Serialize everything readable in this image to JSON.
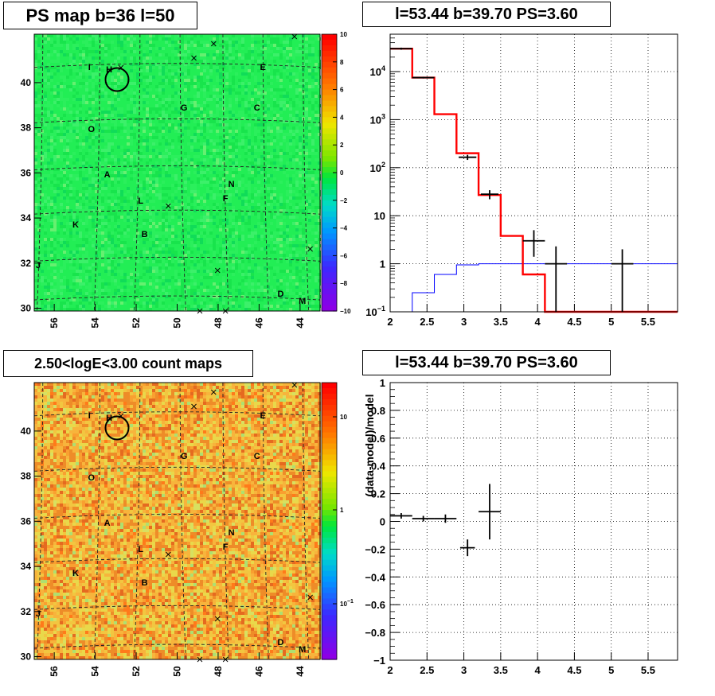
{
  "panels": {
    "ps_map_title": "PS map b=36 l=50",
    "spectrum_title": "l=53.44 b=39.70 PS=3.60",
    "count_map_title": "2.50<logE<3.00 count maps",
    "residual_title": "l=53.44 b=39.70 PS=3.60"
  },
  "colors": {
    "ps_map_fill": "#22ee55",
    "count_map_fill": "#f0a030",
    "data_series": "#000000",
    "model_series": "#ff0000",
    "background_series": "#0000ff"
  },
  "sky_maps": {
    "x_ticks": [
      "56",
      "54",
      "52",
      "50",
      "48",
      "46",
      "44"
    ],
    "y_ticks": [
      "30",
      "32",
      "34",
      "36",
      "38",
      "40"
    ],
    "sources": [
      {
        "label": "A",
        "x": 54.0,
        "y": 35.5
      },
      {
        "label": "B",
        "x": 52.1,
        "y": 33.0
      },
      {
        "label": "C",
        "x": 46.4,
        "y": 38.3
      },
      {
        "label": "D",
        "x": 45.2,
        "y": 30.5
      },
      {
        "label": "E",
        "x": 46.1,
        "y": 40.0
      },
      {
        "label": "F",
        "x": 48.0,
        "y": 34.5
      },
      {
        "label": "G",
        "x": 50.1,
        "y": 38.3
      },
      {
        "label": "H",
        "x": 53.9,
        "y": 39.9
      },
      {
        "label": "I",
        "x": 54.9,
        "y": 40.0
      },
      {
        "label": "J",
        "x": 57.5,
        "y": 31.7
      },
      {
        "label": "K",
        "x": 55.6,
        "y": 33.4
      },
      {
        "label": "L",
        "x": 52.3,
        "y": 34.4
      },
      {
        "label": "M",
        "x": 44.1,
        "y": 30.2
      },
      {
        "label": "N",
        "x": 47.7,
        "y": 35.1
      },
      {
        "label": "O",
        "x": 54.8,
        "y": 37.4
      }
    ],
    "circle": {
      "x": 53.5,
      "y": 39.6
    }
  },
  "chart_data": [
    {
      "type": "heatmap",
      "title": "PS map b=36 l=50",
      "x_ticks": [
        56,
        54,
        52,
        50,
        48,
        46,
        44
      ],
      "y_ticks": [
        30,
        32,
        34,
        36,
        38,
        40
      ],
      "colorbar_ticks": [
        "10",
        "8",
        "6",
        "4",
        "2",
        "0",
        "−2",
        "−4",
        "−6",
        "−8",
        "−10"
      ],
      "colorbar_range": [
        -10,
        10
      ]
    },
    {
      "type": "line",
      "title": "l=53.44 b=39.70 PS=3.60",
      "xlim": [
        2,
        5.9
      ],
      "ylim": [
        0.1,
        60000
      ],
      "y_log": true,
      "x_ticks": [
        "2",
        "2.5",
        "3",
        "3.5",
        "4",
        "4.5",
        "5",
        "5.5"
      ],
      "y_ticks": [
        {
          "v": 0.1,
          "label": "10",
          "sup": "−1"
        },
        {
          "v": 1,
          "label": "1",
          "sup": ""
        },
        {
          "v": 10,
          "label": "10",
          "sup": ""
        },
        {
          "v": 100,
          "label": "10",
          "sup": "2"
        },
        {
          "v": 1000,
          "label": "10",
          "sup": "3"
        },
        {
          "v": 10000,
          "label": "10",
          "sup": "4"
        }
      ],
      "bin_edges": [
        2,
        2.3,
        2.6,
        2.9,
        3.2,
        3.5,
        3.8,
        4.1,
        4.4,
        4.7,
        5.0,
        5.3,
        5.6,
        5.9
      ],
      "model_red": [
        30000,
        7500,
        1300,
        200,
        27,
        3.8,
        0.6,
        0.1,
        0.05,
        0.05,
        0.05,
        0.05,
        0.05
      ],
      "background_blue": [
        0.1,
        0.25,
        0.6,
        0.95,
        1.0,
        1.0,
        1.0,
        1.0,
        1.0,
        1.0,
        1.0,
        1.0,
        1.0
      ],
      "data_points": [
        {
          "x": 2.15,
          "y": 30000,
          "xerr": 0.15,
          "ylo": 28500,
          "yhi": 31500
        },
        {
          "x": 2.45,
          "y": 7500,
          "xerr": 0.15,
          "ylo": 7200,
          "yhi": 7800
        },
        {
          "x": 3.05,
          "y": 165,
          "xerr": 0.12,
          "ylo": 145,
          "yhi": 185
        },
        {
          "x": 3.35,
          "y": 28,
          "xerr": 0.12,
          "ylo": 22,
          "yhi": 34
        },
        {
          "x": 3.95,
          "y": 3.0,
          "xerr": 0.15,
          "ylo": 1.4,
          "yhi": 5.0
        },
        {
          "x": 4.25,
          "y": 1.0,
          "xerr": 0.15,
          "ylo": 0.1,
          "yhi": 2.3
        },
        {
          "x": 5.15,
          "y": 1.0,
          "xerr": 0.15,
          "ylo": 0.1,
          "yhi": 2.0
        }
      ]
    },
    {
      "type": "heatmap",
      "title": "2.50<logE<3.00 count maps",
      "x_ticks": [
        56,
        54,
        52,
        50,
        48,
        46,
        44
      ],
      "y_ticks": [
        30,
        32,
        34,
        36,
        38,
        40
      ],
      "colorbar_ticks": [
        {
          "v": 10,
          "label": "10",
          "sup": ""
        },
        {
          "v": 1,
          "label": "1",
          "sup": ""
        },
        {
          "v": 0.1,
          "label": "10",
          "sup": "−1"
        }
      ]
    },
    {
      "type": "scatter",
      "title": "l=53.44 b=39.70 PS=3.60",
      "ylabel": "(data-model)/model",
      "xlim": [
        2,
        5.9
      ],
      "ylim": [
        -1,
        1
      ],
      "x_ticks": [
        "2",
        "2.5",
        "3",
        "3.5",
        "4",
        "4.5",
        "5",
        "5.5"
      ],
      "y_ticks": [
        "1",
        "0.8",
        "0.6",
        "0.4",
        "0.2",
        "0",
        "−0.2",
        "−0.4",
        "−0.6",
        "−0.8",
        "−1"
      ],
      "points": [
        {
          "x": 2.15,
          "y": 0.04,
          "xerr": 0.15,
          "yerr": 0.02
        },
        {
          "x": 2.45,
          "y": 0.02,
          "xerr": 0.15,
          "yerr": 0.02
        },
        {
          "x": 2.75,
          "y": 0.02,
          "xerr": 0.15,
          "yerr": 0.03
        },
        {
          "x": 3.05,
          "y": -0.19,
          "xerr": 0.1,
          "yerr": 0.06
        },
        {
          "x": 3.35,
          "y": 0.07,
          "xerr": 0.15,
          "yerr": 0.2
        }
      ]
    }
  ]
}
